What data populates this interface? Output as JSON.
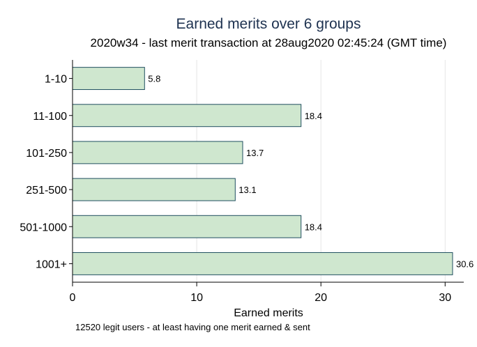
{
  "chart_data": {
    "type": "bar",
    "orientation": "horizontal",
    "title": "Earned merits over 6 groups",
    "subtitle": "2020w34 - last merit transaction at 28aug2020 02:45:24 (GMT time)",
    "xlabel": "Earned merits",
    "ylabel": "",
    "note": "12520 legit users - at least having one merit earned & sent",
    "categories": [
      "1-10",
      "11-100",
      "101-250",
      "251-500",
      "501-1000",
      "1001+"
    ],
    "values": [
      5.8,
      18.4,
      13.7,
      13.1,
      18.4,
      30.6
    ],
    "data_labels": [
      "5.8",
      "18.4",
      "13.7",
      "13.1",
      "18.4",
      "30.6"
    ],
    "xlim": [
      0,
      31.5
    ],
    "xticks": [
      0,
      10,
      20,
      30
    ],
    "xtick_labels": [
      "0",
      "10",
      "20",
      "30"
    ],
    "grid": true,
    "legend": "none",
    "colors": {
      "bar_fill": "#cfe7cf",
      "bar_stroke": "#1f4e5f",
      "gridline": "#e5e5e5",
      "title": "#1e3250",
      "axis": "#000000"
    }
  }
}
